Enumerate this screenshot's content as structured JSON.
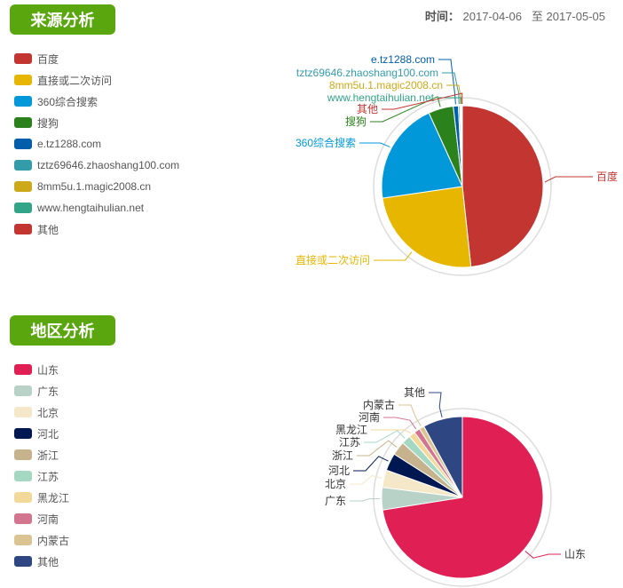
{
  "date": {
    "label": "时间：",
    "start": "2017-04-06",
    "sep": "至",
    "end": "2017-05-05"
  },
  "chart_data": [
    {
      "type": "pie",
      "title": "来源分析",
      "labels": [
        "百度",
        "直接或二次访问",
        "360综合搜索",
        "搜狗",
        "e.tz1288.com",
        "tztz69646.zhaoshang100.com",
        "8mm5u.1.magic2008.cn",
        "www.hengtaihulian.net",
        "其他"
      ],
      "values": [
        48.3,
        24.4,
        20.5,
        5.0,
        1.0,
        0.3,
        0.2,
        0.2,
        0.1
      ],
      "colors": [
        "#c23531",
        "#e6b600",
        "#0098d9",
        "#2b821d",
        "#005eaa",
        "#339ca8",
        "#cda819",
        "#32a487",
        "#c23531"
      ]
    },
    {
      "type": "pie",
      "title": "地区分析",
      "labels": [
        "山东",
        "广东",
        "北京",
        "河北",
        "浙江",
        "江苏",
        "黑龙江",
        "河南",
        "内蒙古",
        "其他"
      ],
      "values": [
        72.5,
        4.5,
        3.5,
        3.5,
        2.8,
        1.8,
        1.3,
        1.2,
        1.0,
        7.9
      ],
      "colors": [
        "#e01f54",
        "#b8d2c7",
        "#f5e8c8",
        "#001852",
        "#c6b38e",
        "#a4d8c2",
        "#f3d999",
        "#d3758f",
        "#dcc392",
        "#2e4783"
      ]
    }
  ]
}
